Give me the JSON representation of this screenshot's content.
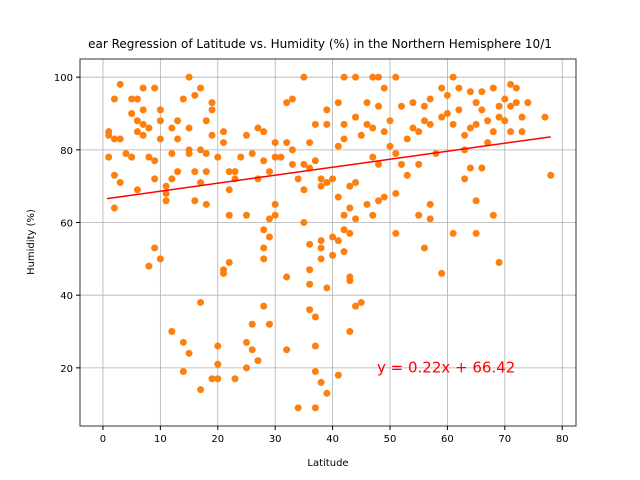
{
  "chart_data": {
    "type": "scatter",
    "title": "ear Regression of Latitude vs. Humidity (%) in the Northern Hemisphere 10/1",
    "xlabel": "Latitude",
    "ylabel": "Humidity (%)",
    "annotation": "y = 0.22x + 66.42",
    "annotation_color": "#ff0000",
    "xlim": [
      -4,
      82.4
    ],
    "ylim": [
      4,
      105
    ],
    "xticks": [
      0,
      10,
      20,
      30,
      40,
      50,
      60,
      70,
      80
    ],
    "yticks": [
      20,
      40,
      60,
      80,
      100
    ],
    "grid": true,
    "series": [
      {
        "style": "points",
        "color": "#ff7f0e",
        "x": [
          12,
          14,
          14,
          15,
          17,
          17,
          19,
          20,
          20,
          20,
          21,
          21,
          22,
          23,
          25,
          25,
          26,
          26,
          27,
          28,
          28,
          28,
          29,
          29,
          28,
          29,
          30,
          30,
          32,
          32,
          34,
          35,
          36,
          36,
          36,
          36,
          37,
          37,
          37,
          37,
          38,
          38,
          38,
          38,
          39,
          39,
          40,
          40,
          41,
          41,
          42,
          42,
          43,
          43,
          43,
          44,
          43,
          45,
          46,
          55,
          56,
          57,
          57,
          59,
          61,
          63,
          64,
          65,
          65,
          66,
          68,
          69,
          78,
          1,
          1,
          1,
          2,
          2,
          2,
          3,
          3,
          3,
          2,
          4,
          5,
          5,
          5,
          6,
          6,
          6,
          6,
          7,
          7,
          7,
          7,
          8,
          8,
          8,
          9,
          9,
          9,
          9,
          10,
          10,
          10,
          10,
          11,
          11,
          11,
          12,
          12,
          12,
          13,
          13,
          13,
          14,
          15,
          15,
          15,
          15,
          16,
          16,
          16,
          17,
          17,
          17,
          18,
          18,
          18,
          18,
          19,
          19,
          19,
          20,
          21,
          21,
          22,
          22,
          22,
          23,
          23,
          24,
          25,
          25,
          26,
          27,
          27,
          28,
          28,
          29,
          30,
          30,
          31,
          32,
          32,
          33,
          33,
          33,
          34,
          35,
          35,
          35,
          36,
          36,
          37,
          37,
          38,
          38,
          39,
          39,
          39,
          40,
          41,
          41,
          41,
          42,
          42,
          42,
          42,
          43,
          43,
          44,
          44,
          44,
          44,
          45,
          46,
          46,
          47,
          47,
          47,
          47,
          48,
          48,
          48,
          48,
          49,
          49,
          49,
          50,
          50,
          51,
          51,
          51,
          51,
          52,
          52,
          53,
          53,
          54,
          54,
          55,
          55,
          56,
          56,
          57,
          57,
          58,
          59,
          59,
          60,
          60,
          61,
          61,
          62,
          62,
          63,
          63,
          64,
          64,
          65,
          65,
          66,
          66,
          67,
          67,
          68,
          68,
          69,
          69,
          70,
          70,
          71,
          71,
          71,
          72,
          72,
          73,
          73,
          74,
          77
        ],
        "values": [
          30,
          19,
          27,
          24,
          14,
          38,
          17,
          17,
          26,
          21,
          47,
          46,
          49,
          17,
          27,
          20,
          32,
          25,
          22,
          37,
          50,
          53,
          32,
          56,
          58,
          61,
          62,
          65,
          25,
          45,
          9,
          60,
          54,
          47,
          43,
          36,
          34,
          26,
          19,
          9,
          16,
          50,
          53,
          55,
          42,
          13,
          51,
          56,
          55,
          18,
          52,
          58,
          45,
          44,
          30,
          37,
          57,
          38,
          65,
          62,
          53,
          65,
          61,
          46,
          57,
          72,
          75,
          57,
          66,
          75,
          62,
          49,
          73,
          84,
          85,
          78,
          73,
          64,
          94,
          98,
          71,
          83,
          83,
          79,
          90,
          94,
          78,
          69,
          88,
          94,
          85,
          97,
          87,
          91,
          84,
          78,
          48,
          86,
          77,
          72,
          53,
          97,
          91,
          83,
          50,
          88,
          66,
          70,
          68,
          79,
          72,
          86,
          74,
          88,
          83,
          94,
          79,
          80,
          100,
          86,
          66,
          74,
          95,
          71,
          80,
          97,
          74,
          79,
          88,
          65,
          91,
          84,
          93,
          78,
          82,
          85,
          62,
          69,
          74,
          74,
          72,
          78,
          84,
          62,
          79,
          86,
          72,
          77,
          85,
          74,
          82,
          78,
          78,
          93,
          82,
          94,
          76,
          80,
          72,
          69,
          100,
          76,
          75,
          82,
          87,
          77,
          72,
          70,
          91,
          87,
          71,
          72,
          81,
          93,
          67,
          100,
          87,
          62,
          83,
          70,
          64,
          100,
          89,
          71,
          61,
          84,
          93,
          87,
          100,
          78,
          62,
          86,
          100,
          92,
          76,
          66,
          97,
          85,
          67,
          88,
          81,
          100,
          79,
          68,
          57,
          92,
          76,
          83,
          73,
          93,
          86,
          85,
          76,
          92,
          88,
          87,
          94,
          79,
          97,
          89,
          95,
          90,
          100,
          87,
          97,
          91,
          80,
          84,
          96,
          86,
          93,
          87,
          96,
          91,
          88,
          82,
          97,
          85,
          92,
          89,
          94,
          88,
          98,
          92,
          85,
          97,
          93,
          85,
          89,
          93,
          89
        ]
      },
      {
        "style": "line",
        "color": "#ff0000",
        "x": [
          0.7,
          78
        ],
        "values": [
          66.57,
          83.58
        ]
      }
    ]
  }
}
